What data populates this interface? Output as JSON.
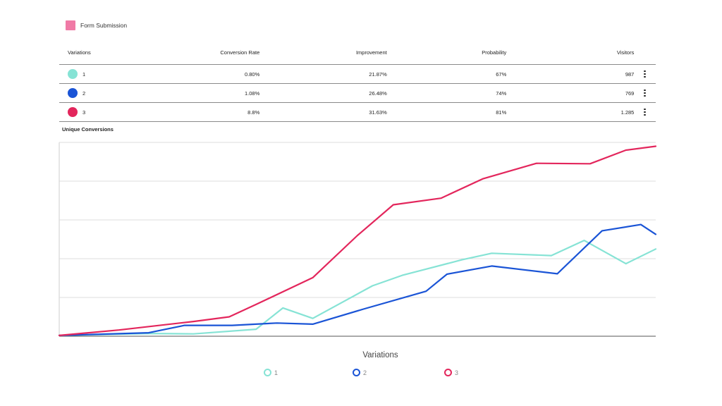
{
  "legend_top": {
    "label": "Form Submission",
    "color": "#f07aa6"
  },
  "table": {
    "headers": {
      "variations": "Variations",
      "conversion_rate": "Conversion Rate",
      "improvement": "Improvement",
      "probability": "Probability",
      "visitors": "Visitors"
    },
    "rows": [
      {
        "name": "1",
        "color": "#86e3d5",
        "conversion_rate": "0.80%",
        "improvement": "21.87%",
        "probability": "67%",
        "visitors": "987",
        "menu_icon": "kebab-menu-icon"
      },
      {
        "name": "2",
        "color": "#1a54d6",
        "conversion_rate": "1.08%",
        "improvement": "26.48%",
        "probability": "74%",
        "visitors": "769",
        "menu_icon": "kebab-menu-icon"
      },
      {
        "name": "3",
        "color": "#e3265c",
        "conversion_rate": "8.8%",
        "improvement": "31.63%",
        "probability": "81%",
        "visitors": "1.285",
        "menu_icon": "kebab-menu-icon"
      }
    ]
  },
  "chart_data": {
    "type": "line",
    "title": "Unique Conversions",
    "xlabel": "Variations",
    "ylabel": "",
    "ylim": [
      0,
      5
    ],
    "grid": true,
    "legend_position": "bottom",
    "x": [
      0,
      1,
      2,
      3,
      4,
      5,
      6,
      7,
      8,
      9,
      10,
      11,
      12,
      13,
      14,
      15,
      16,
      17,
      18,
      19,
      20
    ],
    "series": [
      {
        "name": "1",
        "color": "#86e3d5",
        "points": [
          [
            0,
            0.02
          ],
          [
            3,
            0.07
          ],
          [
            4.5,
            0.06
          ],
          [
            6.6,
            0.18
          ],
          [
            7.5,
            0.73
          ],
          [
            8.5,
            0.46
          ],
          [
            10.5,
            1.3
          ],
          [
            11.5,
            1.57
          ],
          [
            13.5,
            1.97
          ],
          [
            14.5,
            2.14
          ],
          [
            16.5,
            2.08
          ],
          [
            17.6,
            2.47
          ],
          [
            19,
            1.87
          ],
          [
            20,
            2.25
          ]
        ],
        "marker": {
          "x": 17.6,
          "y": 2.47
        }
      },
      {
        "name": "2",
        "color": "#1a54d6",
        "points": [
          [
            0,
            0.02
          ],
          [
            3,
            0.09
          ],
          [
            4.2,
            0.28
          ],
          [
            5.8,
            0.28
          ],
          [
            7.3,
            0.34
          ],
          [
            8.5,
            0.31
          ],
          [
            10.2,
            0.7
          ],
          [
            12.3,
            1.16
          ],
          [
            13,
            1.6
          ],
          [
            14.5,
            1.81
          ],
          [
            16.7,
            1.61
          ],
          [
            18.2,
            2.72
          ],
          [
            19.5,
            2.88
          ],
          [
            20,
            2.63
          ]
        ],
        "marker": {
          "x": 15.5,
          "y": 1.74
        }
      },
      {
        "name": "3",
        "color": "#e3265c",
        "points": [
          [
            0,
            0.02
          ],
          [
            2,
            0.16
          ],
          [
            4.5,
            0.38
          ],
          [
            5.7,
            0.5
          ],
          [
            6.6,
            0.82
          ],
          [
            8.5,
            1.51
          ],
          [
            10,
            2.6
          ],
          [
            11.2,
            3.39
          ],
          [
            12.8,
            3.56
          ],
          [
            14.2,
            4.06
          ],
          [
            16,
            4.46
          ],
          [
            17.8,
            4.45
          ],
          [
            19,
            4.8
          ],
          [
            20,
            4.9
          ]
        ],
        "marker": {
          "x": 15,
          "y": 4.25
        }
      }
    ]
  }
}
